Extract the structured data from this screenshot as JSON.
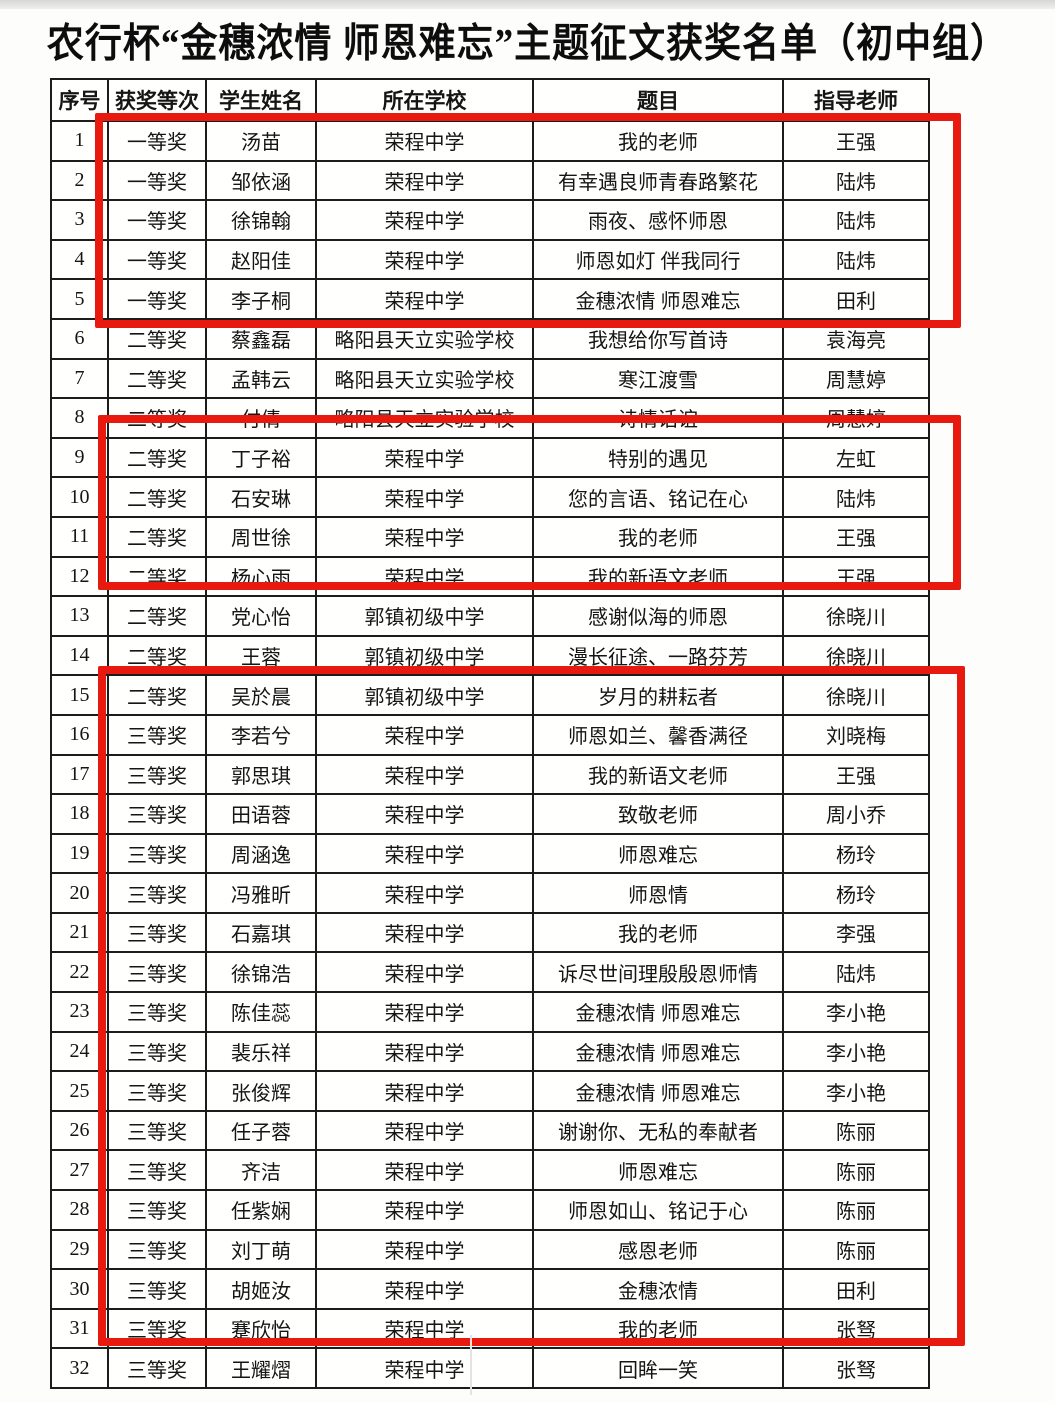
{
  "page": {
    "title": "农行杯“金穗浓情 师恩难忘”主题征文获奖名单（初中组）"
  },
  "highlight_color": "#e8190f",
  "table": {
    "headers": [
      "序号",
      "获奖等次",
      "学生姓名",
      "所在学校",
      "题目",
      "指导老师"
    ],
    "rows": [
      {
        "no": "1",
        "award": "一等奖",
        "name": "汤苗",
        "school": "荣程中学",
        "title": "我的老师",
        "teacher": "王强"
      },
      {
        "no": "2",
        "award": "一等奖",
        "name": "邹依涵",
        "school": "荣程中学",
        "title": "有幸遇良师青春路繁花",
        "teacher": "陆炜"
      },
      {
        "no": "3",
        "award": "一等奖",
        "name": "徐锦翰",
        "school": "荣程中学",
        "title": "雨夜、感怀师恩",
        "teacher": "陆炜"
      },
      {
        "no": "4",
        "award": "一等奖",
        "name": "赵阳佳",
        "school": "荣程中学",
        "title": "师恩如灯 伴我同行",
        "teacher": "陆炜"
      },
      {
        "no": "5",
        "award": "一等奖",
        "name": "李子桐",
        "school": "荣程中学",
        "title": "金穗浓情 师恩难忘",
        "teacher": "田利"
      },
      {
        "no": "6",
        "award": "二等奖",
        "name": "蔡鑫磊",
        "school": "略阳县天立实验学校",
        "title": "我想给你写首诗",
        "teacher": "袁海亮"
      },
      {
        "no": "7",
        "award": "二等奖",
        "name": "孟韩云",
        "school": "略阳县天立实验学校",
        "title": "寒江渡雪",
        "teacher": "周慧婷"
      },
      {
        "no": "8",
        "award": "二等奖",
        "name": "付倩",
        "school": "略阳县天立实验学校",
        "title": "诗情话谊",
        "teacher": "周慧婷"
      },
      {
        "no": "9",
        "award": "二等奖",
        "name": "丁子裕",
        "school": "荣程中学",
        "title": "特别的遇见",
        "teacher": "左虹"
      },
      {
        "no": "10",
        "award": "二等奖",
        "name": "石安琳",
        "school": "荣程中学",
        "title": "您的言语、铭记在心",
        "teacher": "陆炜"
      },
      {
        "no": "11",
        "award": "二等奖",
        "name": "周世徐",
        "school": "荣程中学",
        "title": "我的老师",
        "teacher": "王强"
      },
      {
        "no": "12",
        "award": "二等奖",
        "name": "杨心雨",
        "school": "荣程中学",
        "title": "我的新语文老师",
        "teacher": "王强"
      },
      {
        "no": "13",
        "award": "二等奖",
        "name": "党心怡",
        "school": "郭镇初级中学",
        "title": "感谢似海的师恩",
        "teacher": "徐晓川"
      },
      {
        "no": "14",
        "award": "二等奖",
        "name": "王蓉",
        "school": "郭镇初级中学",
        "title": "漫长征途、一路芬芳",
        "teacher": "徐晓川"
      },
      {
        "no": "15",
        "award": "二等奖",
        "name": "吴於晨",
        "school": "郭镇初级中学",
        "title": "岁月的耕耘者",
        "teacher": "徐晓川"
      },
      {
        "no": "16",
        "award": "三等奖",
        "name": "李若兮",
        "school": "荣程中学",
        "title": "师恩如兰、馨香满径",
        "teacher": "刘晓梅"
      },
      {
        "no": "17",
        "award": "三等奖",
        "name": "郭思琪",
        "school": "荣程中学",
        "title": "我的新语文老师",
        "teacher": "王强"
      },
      {
        "no": "18",
        "award": "三等奖",
        "name": "田语蓉",
        "school": "荣程中学",
        "title": "致敬老师",
        "teacher": "周小乔"
      },
      {
        "no": "19",
        "award": "三等奖",
        "name": "周涵逸",
        "school": "荣程中学",
        "title": "师恩难忘",
        "teacher": "杨玲"
      },
      {
        "no": "20",
        "award": "三等奖",
        "name": "冯雅昕",
        "school": "荣程中学",
        "title": "师恩情",
        "teacher": "杨玲"
      },
      {
        "no": "21",
        "award": "三等奖",
        "name": "石嘉琪",
        "school": "荣程中学",
        "title": "我的老师",
        "teacher": "李强"
      },
      {
        "no": "22",
        "award": "三等奖",
        "name": "徐锦浩",
        "school": "荣程中学",
        "title": "诉尽世间理殷殷恩师情",
        "teacher": "陆炜"
      },
      {
        "no": "23",
        "award": "三等奖",
        "name": "陈佳蕊",
        "school": "荣程中学",
        "title": "金穗浓情 师恩难忘",
        "teacher": "李小艳"
      },
      {
        "no": "24",
        "award": "三等奖",
        "name": "裴乐祥",
        "school": "荣程中学",
        "title": "金穗浓情 师恩难忘",
        "teacher": "李小艳"
      },
      {
        "no": "25",
        "award": "三等奖",
        "name": "张俊辉",
        "school": "荣程中学",
        "title": "金穗浓情 师恩难忘",
        "teacher": "李小艳"
      },
      {
        "no": "26",
        "award": "三等奖",
        "name": "任子蓉",
        "school": "荣程中学",
        "title": "谢谢你、无私的奉献者",
        "teacher": "陈丽"
      },
      {
        "no": "27",
        "award": "三等奖",
        "name": "齐洁",
        "school": "荣程中学",
        "title": "师恩难忘",
        "teacher": "陈丽"
      },
      {
        "no": "28",
        "award": "三等奖",
        "name": "任紫娴",
        "school": "荣程中学",
        "title": "师恩如山、铭记于心",
        "teacher": "陈丽"
      },
      {
        "no": "29",
        "award": "三等奖",
        "name": "刘丁萌",
        "school": "荣程中学",
        "title": "感恩老师",
        "teacher": "陈丽"
      },
      {
        "no": "30",
        "award": "三等奖",
        "name": "胡姬汝",
        "school": "荣程中学",
        "title": "金穗浓情",
        "teacher": "田利"
      },
      {
        "no": "31",
        "award": "三等奖",
        "name": "蹇欣怡",
        "school": "荣程中学",
        "title": "我的老师",
        "teacher": "张驽"
      },
      {
        "no": "32",
        "award": "三等奖",
        "name": "王耀熠",
        "school": "荣程中学",
        "title": "回眸一笑",
        "teacher": "张驽"
      }
    ]
  },
  "highlights": [
    {
      "label": "first-prize-highlight",
      "rows": "1-5"
    },
    {
      "label": "second-prize-rongcheng-highlight",
      "rows": "9-12"
    },
    {
      "label": "third-prize-highlight",
      "rows": "16-32"
    }
  ]
}
